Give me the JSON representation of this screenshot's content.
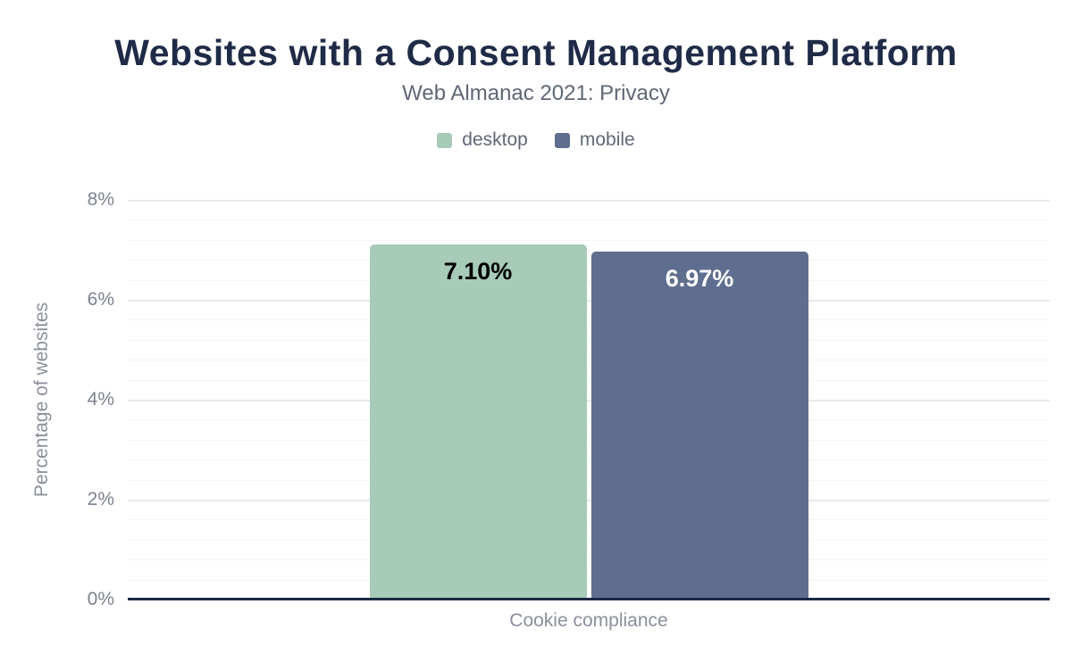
{
  "header": {
    "title": "Websites with a Consent Management Platform",
    "subtitle": "Web Almanac 2021: Privacy"
  },
  "legend": {
    "items": [
      {
        "label": "desktop",
        "color": "#a7cbb8"
      },
      {
        "label": "mobile",
        "color": "#5f6e8e"
      }
    ]
  },
  "chart_data": {
    "type": "bar",
    "categories": [
      "Cookie compliance"
    ],
    "series": [
      {
        "name": "desktop",
        "values": [
          7.1
        ],
        "data_labels": [
          "7.10%"
        ],
        "color": "#a7cbb8",
        "label_color": "#000000"
      },
      {
        "name": "mobile",
        "values": [
          6.97
        ],
        "data_labels": [
          "6.97%"
        ],
        "color": "#5f6e8e",
        "label_color": "#ffffff"
      }
    ],
    "title": "Websites with a Consent Management Platform",
    "subtitle": "Web Almanac 2021: Privacy",
    "xlabel": "Cookie compliance",
    "ylabel": "Percentage of websites",
    "ylim": [
      0,
      8
    ],
    "yticks": [
      {
        "value": 0,
        "label": "0%"
      },
      {
        "value": 2,
        "label": "2%"
      },
      {
        "value": 4,
        "label": "4%"
      },
      {
        "value": 6,
        "label": "6%"
      },
      {
        "value": 8,
        "label": "8%"
      }
    ],
    "major_grid_step": 2,
    "minor_grid_step": 0.4,
    "grid": true,
    "legend_position": "top"
  },
  "colors": {
    "title_text": "#1f2b47",
    "subtitle_text": "#5f6776",
    "legend_text": "#606876",
    "tick_text": "#7d828d",
    "axis_title_text": "#8b909a",
    "xlabel_text": "#8b909a",
    "grid_minor": "#f5f5f7",
    "grid_major": "#e9e9ed",
    "baseline": "#1b2944",
    "background": "#ffffff"
  }
}
